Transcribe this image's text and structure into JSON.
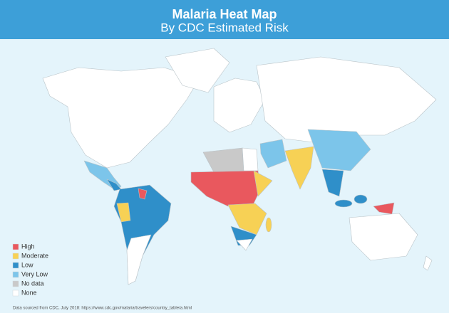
{
  "header": {
    "title": "Malaria Heat Map",
    "subtitle": "By CDC Estimated Risk"
  },
  "legend": [
    {
      "label": "High",
      "color": "#e9585e"
    },
    {
      "label": "Moderate",
      "color": "#f7d155"
    },
    {
      "label": "Low",
      "color": "#2f8fc9"
    },
    {
      "label": "Very Low",
      "color": "#7cc5ea"
    },
    {
      "label": "No data",
      "color": "#c9c9c9"
    },
    {
      "label": "None",
      "color": "#ffffff"
    }
  ],
  "source": "Data sourced from CDC, July 2018: https://www.cdc.gov/malaria/travelers/country_table/a.html"
}
